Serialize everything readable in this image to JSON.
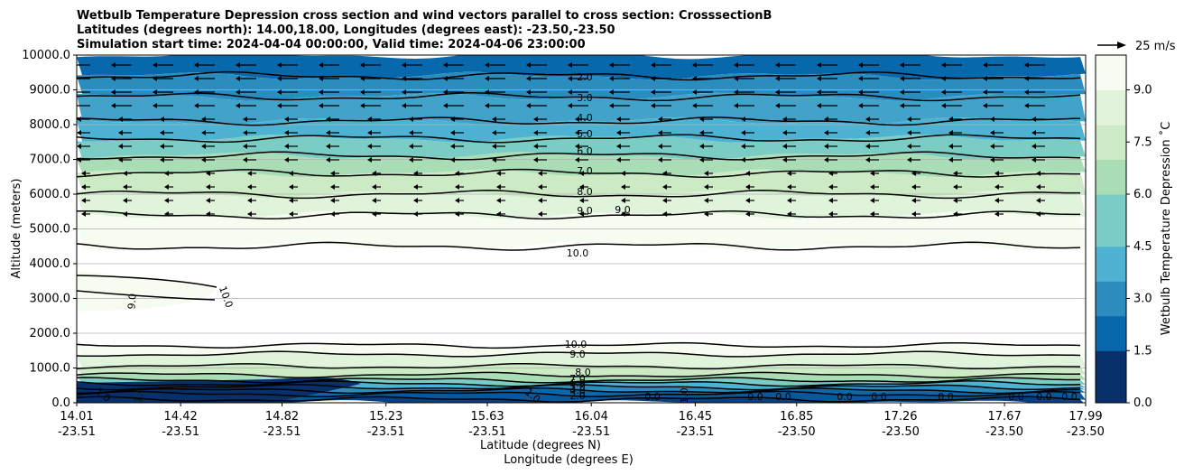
{
  "chart_data": {
    "type": "contour",
    "title": [
      "Wetbulb Temperature Depression cross section and wind vectors parallel to cross section: CrosssectionB",
      "Latitudes (degrees north): 14.00,18.00, Longitudes (degrees east): -23.50,-23.50",
      "Simulation start time: 2024-04-04 00:00:00, Valid time: 2024-04-06 23:00:00"
    ],
    "ylabel": "Altitude (meters)",
    "xlabel_lat": "Latitude (degrees N)",
    "xlabel_lon": "Longitude (degrees E)",
    "ylim": [
      0,
      10000
    ],
    "yticks": [
      "0.0",
      "1000.0",
      "2000.0",
      "3000.0",
      "4000.0",
      "5000.0",
      "6000.0",
      "7000.0",
      "8000.0",
      "9000.0",
      "10000.0"
    ],
    "ytick_values": [
      0,
      1000,
      2000,
      3000,
      4000,
      5000,
      6000,
      7000,
      8000,
      9000,
      10000
    ],
    "xticks_lat": [
      "14.01",
      "14.42",
      "14.82",
      "15.23",
      "15.63",
      "16.04",
      "16.45",
      "16.85",
      "17.26",
      "17.67",
      "17.99"
    ],
    "xticks_lon": [
      "-23.51",
      "-23.51",
      "-23.51",
      "-23.51",
      "-23.51",
      "-23.51",
      "-23.51",
      "-23.50",
      "-23.50",
      "-23.50",
      "-23.50"
    ],
    "xtick_values": [
      14.01,
      14.42,
      14.82,
      15.23,
      15.63,
      16.04,
      16.45,
      16.85,
      17.26,
      17.67,
      17.99
    ],
    "xlim": [
      14.01,
      17.99
    ],
    "colorbar": {
      "label": "Wetbulb Temperature Depression ˚C",
      "range": [
        0,
        10
      ],
      "ticks": [
        "0.0",
        "1.5",
        "3.0",
        "4.5",
        "6.0",
        "7.5",
        "9.0"
      ],
      "tick_values": [
        0,
        1.5,
        3.0,
        4.5,
        6.0,
        7.5,
        9.0
      ],
      "colors": [
        "#08306b",
        "#0868ac",
        "#2b8cbe",
        "#4eb3d3",
        "#7bccc4",
        "#a8ddb5",
        "#ccebc5",
        "#e0f3db",
        "#f7fcf0"
      ]
    },
    "quiver_key": "25 m/s",
    "contour_labels_upper": [
      "2.0",
      "3.0",
      "4.0",
      "5.0",
      "6.0",
      "7.0",
      "8.0",
      "9.0",
      "9.0",
      "10.0"
    ],
    "contour_labels_mid": [
      "9.0",
      "10.0"
    ],
    "contour_labels_lower": [
      "10.0",
      "9.0",
      "8.0",
      "7.0",
      "6.0",
      "5.0",
      "4.0",
      "3.0",
      "2.0",
      "1.0"
    ],
    "contour_labels_surface": [
      "0.0",
      "0.0",
      "0.0",
      "0.0",
      "0.0",
      "0.0",
      "0.0",
      "0.0",
      "0.0",
      "1.0",
      "1.0",
      "1.0"
    ],
    "upper_contours": [
      {
        "level": 2.0,
        "alt": 9400
      },
      {
        "level": 3.0,
        "alt": 8800
      },
      {
        "level": 4.0,
        "alt": 8100
      },
      {
        "level": 5.0,
        "alt": 7600
      },
      {
        "level": 6.0,
        "alt": 7100
      },
      {
        "level": 7.0,
        "alt": 6600
      },
      {
        "level": 8.0,
        "alt": 6000
      },
      {
        "level": 9.0,
        "alt": 5400
      },
      {
        "level": 10.0,
        "alt": 4500
      }
    ],
    "lower_contours": [
      {
        "level": 10.0,
        "alt": 1650
      },
      {
        "level": 9.0,
        "alt": 1400
      },
      {
        "level": 8.0,
        "alt": 1050
      },
      {
        "level": 7.0,
        "alt": 800
      },
      {
        "level": 6.0,
        "alt": 650
      },
      {
        "level": 5.0,
        "alt": 550
      },
      {
        "level": 4.0,
        "alt": 450
      },
      {
        "level": 3.0,
        "alt": 350
      },
      {
        "level": 2.0,
        "alt": 250
      },
      {
        "level": 1.0,
        "alt": 100
      }
    ]
  }
}
